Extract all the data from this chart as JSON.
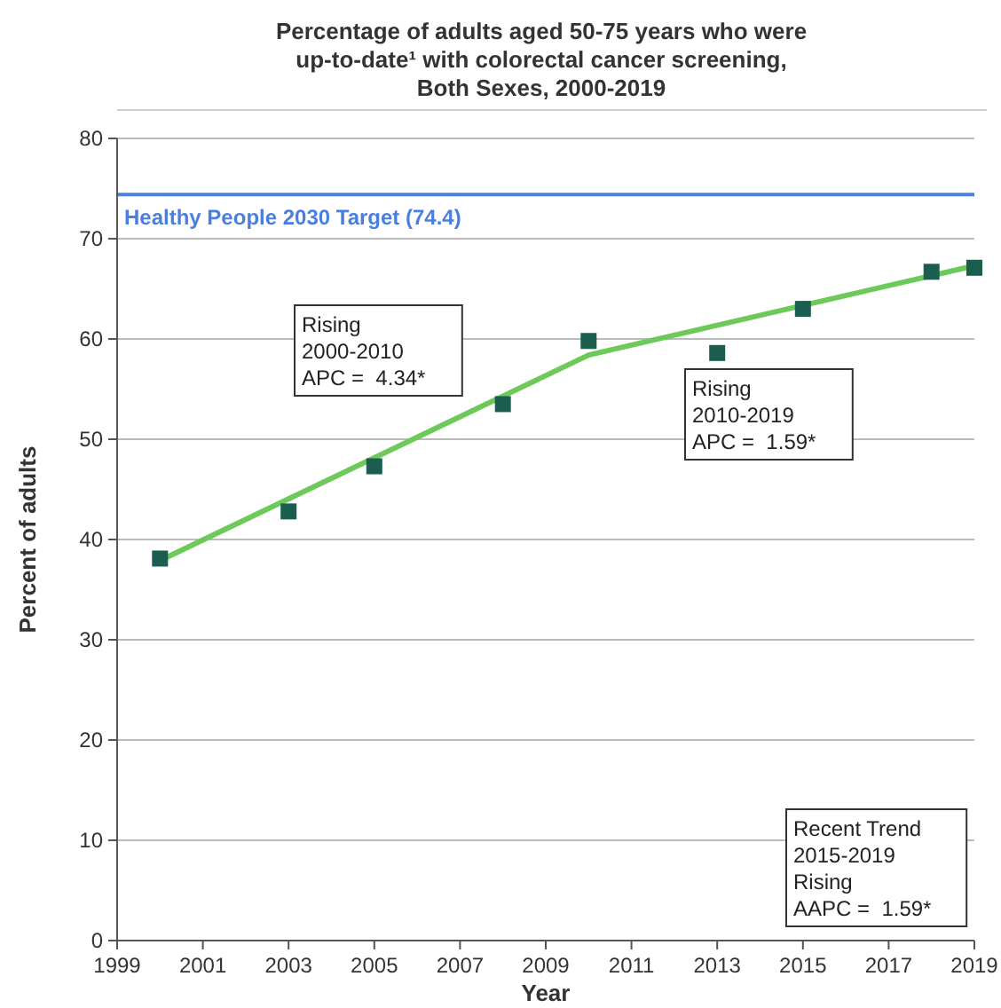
{
  "chart_data": {
    "type": "scatter",
    "title": "Percentage of adults aged 50-75 years  who were\nup-to-date¹ with colorectal cancer screening,\nBoth Sexes,  2000-2019",
    "xlabel": "Year",
    "ylabel": "Percent of adults",
    "series": [
      {
        "color": "#1b5e4f",
        "marker": "square",
        "x": [
          2000,
          2003,
          2005,
          2008,
          2010,
          2013,
          2015,
          2018,
          2019
        ],
        "values": [
          38.1,
          42.8,
          47.3,
          53.5,
          59.8,
          58.6,
          63.0,
          66.7,
          67.1
        ]
      },
      {
        "type": "line",
        "color": "#6cc95a",
        "marker": "none",
        "x": [
          2000,
          2010,
          2019
        ],
        "values": [
          37.9,
          58.4,
          67.3
        ]
      }
    ],
    "xlim": [
      1999,
      2019
    ],
    "xticks": [
      1999,
      2001,
      2003,
      2005,
      2007,
      2009,
      2011,
      2013,
      2015,
      2017,
      2019
    ],
    "ylim": [
      0,
      80
    ],
    "yticks": [
      0,
      10,
      20,
      30,
      40,
      50,
      60,
      70,
      80
    ],
    "grid": "y",
    "ref_lines": [
      {
        "axis": "y",
        "value": 74.4,
        "label": "Healthy People 2030 Target (74.4)",
        "color": "#4a7fe0"
      }
    ],
    "annotations": [
      "Rising\n2000-2010\nAPC =  4.34*",
      "Rising\n2010-2019\nAPC =  1.59*",
      "Recent Trend\n2015-2019\nRising\nAAPC =  1.59*"
    ]
  }
}
